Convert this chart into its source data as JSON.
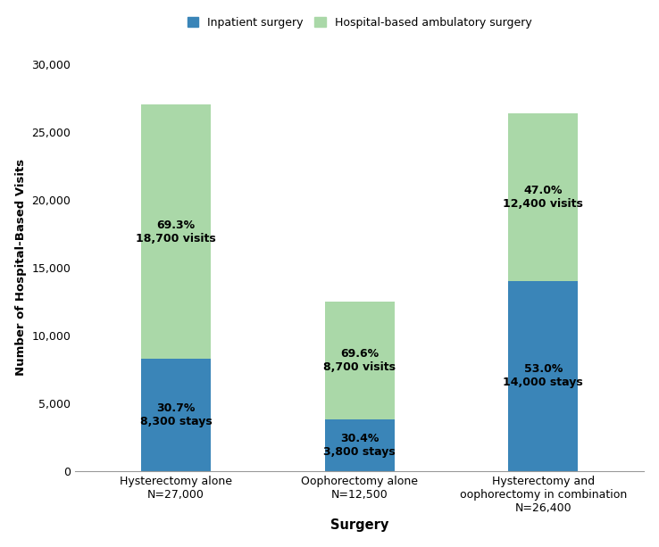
{
  "categories": [
    "Hysterectomy alone\nN=27,000",
    "Oophorectomy alone\nN=12,500",
    "Hysterectomy and\noophorectomy in combination\nN=26,400"
  ],
  "inpatient_values": [
    8300,
    3800,
    14000
  ],
  "ambulatory_values": [
    18700,
    8700,
    12400
  ],
  "inpatient_label": "Inpatient surgery",
  "ambulatory_label": "Hospital-based ambulatory surgery",
  "ylabel": "Number of Hospital-Based Visits",
  "xlabel": "Surgery",
  "ylim": [
    0,
    30000
  ],
  "yticks": [
    0,
    5000,
    10000,
    15000,
    20000,
    25000,
    30000
  ],
  "bar_annotations": [
    {
      "pct": "30.7%",
      "label": "8,300 stays",
      "bar": 0,
      "segment": "inpatient"
    },
    {
      "pct": "69.3%",
      "label": "18,700 visits",
      "bar": 0,
      "segment": "ambulatory"
    },
    {
      "pct": "30.4%",
      "label": "3,800 stays",
      "bar": 1,
      "segment": "inpatient"
    },
    {
      "pct": "69.6%",
      "label": "8,700 visits",
      "bar": 1,
      "segment": "ambulatory"
    },
    {
      "pct": "53.0%",
      "label": "14,000 stays",
      "bar": 2,
      "segment": "inpatient"
    },
    {
      "pct": "47.0%",
      "label": "12,400 visits",
      "bar": 2,
      "segment": "ambulatory"
    }
  ],
  "inpatient_color": "#3a85b8",
  "ambulatory_color": "#aad8a8",
  "background_color": "#ffffff",
  "bar_width": 0.38
}
